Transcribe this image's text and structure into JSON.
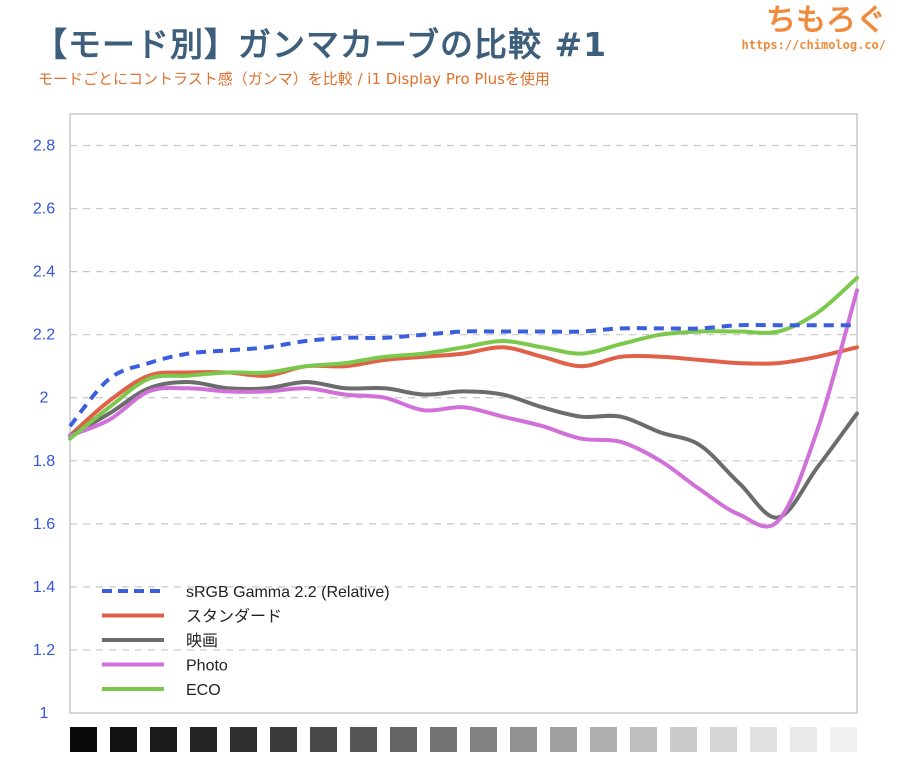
{
  "header": {
    "title": "【モード別】ガンマカーブの比較 #1",
    "subtitle": "モードごとにコントラスト感（ガンマ）を比較 / i1 Display Pro Plusを使用",
    "brand_logo": "ちもろぐ",
    "brand_url": "https://chimolog.co/"
  },
  "chart_data": {
    "type": "line",
    "title": "【モード別】ガンマカーブの比較 #1",
    "subtitle": "モードごとにコントラスト感（ガンマ）を比較 / i1 Display Pro Plusを使用",
    "xlabel": "",
    "ylabel": "",
    "ylim": [
      1,
      2.9
    ],
    "yticks": [
      "1",
      "1.2",
      "1.4",
      "1.6",
      "1.8",
      "2",
      "2.2",
      "2.4",
      "2.6",
      "2.8"
    ],
    "grid": true,
    "legend_position": "bottom-left",
    "x": [
      0,
      5,
      10,
      15,
      20,
      25,
      30,
      35,
      40,
      45,
      50,
      55,
      60,
      65,
      70,
      75,
      80,
      85,
      90,
      95,
      100
    ],
    "series": [
      {
        "name": "sRGB Gamma 2.2 (Relative)",
        "color": "#3b5ede",
        "dashed": true,
        "values": [
          1.91,
          2.06,
          2.11,
          2.14,
          2.15,
          2.16,
          2.18,
          2.19,
          2.19,
          2.2,
          2.21,
          2.21,
          2.21,
          2.21,
          2.22,
          2.22,
          2.22,
          2.23,
          2.23,
          2.23,
          2.23
        ]
      },
      {
        "name": "スタンダード",
        "color": "#e06048",
        "dashed": false,
        "values": [
          1.88,
          1.99,
          2.07,
          2.08,
          2.08,
          2.07,
          2.1,
          2.1,
          2.12,
          2.13,
          2.14,
          2.16,
          2.13,
          2.1,
          2.13,
          2.13,
          2.12,
          2.11,
          2.11,
          2.13,
          2.16
        ]
      },
      {
        "name": "映画",
        "color": "#6c6c6c",
        "dashed": false,
        "values": [
          1.88,
          1.95,
          2.03,
          2.05,
          2.03,
          2.03,
          2.05,
          2.03,
          2.03,
          2.01,
          2.02,
          2.01,
          1.97,
          1.94,
          1.94,
          1.89,
          1.85,
          1.73,
          1.62,
          1.78,
          1.95
        ]
      },
      {
        "name": "Photo",
        "color": "#d070d8",
        "dashed": false,
        "values": [
          1.88,
          1.93,
          2.02,
          2.03,
          2.02,
          2.02,
          2.03,
          2.01,
          2.0,
          1.96,
          1.97,
          1.94,
          1.91,
          1.87,
          1.86,
          1.8,
          1.71,
          1.63,
          1.61,
          1.9,
          2.34
        ]
      },
      {
        "name": "ECO",
        "color": "#7cc84c",
        "dashed": false,
        "values": [
          1.87,
          1.97,
          2.06,
          2.07,
          2.08,
          2.08,
          2.1,
          2.11,
          2.13,
          2.14,
          2.16,
          2.18,
          2.16,
          2.14,
          2.17,
          2.2,
          2.21,
          2.21,
          2.21,
          2.27,
          2.38
        ]
      }
    ],
    "grayscale_steps": [
      "#0a0a0a",
      "#121212",
      "#1a1a1a",
      "#242424",
      "#2f2f2f",
      "#3b3b3b",
      "#484848",
      "#565656",
      "#646464",
      "#737373",
      "#828282",
      "#919191",
      "#a0a0a0",
      "#afafaf",
      "#bebebe",
      "#cbcbcb",
      "#d6d6d6",
      "#e0e0e0",
      "#e9e9e9",
      "#f1f1f1"
    ]
  }
}
